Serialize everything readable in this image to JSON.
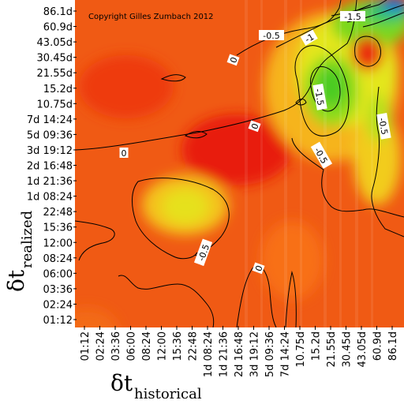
{
  "chart_data": {
    "type": "heatmap",
    "copyright": "Copyright Gilles Zumbach 2012",
    "xlabel": {
      "symbol": "δt",
      "subscript": "historical"
    },
    "ylabel": {
      "symbol": "δt",
      "subscript": "realized"
    },
    "x_ticks": [
      "01:12",
      "02:24",
      "03:36",
      "06:00",
      "08:24",
      "12:00",
      "15:36",
      "22:48",
      "1d 08:24",
      "1d 21:36",
      "2d 16:48",
      "3d 19:12",
      "5d 09:36",
      "7d 14:24",
      "10.75d",
      "15.2d",
      "21.55d",
      "30.45d",
      "43.05d",
      "60.9d",
      "86.1d"
    ],
    "y_ticks": [
      "01:12",
      "02:24",
      "03:36",
      "06:00",
      "08:24",
      "12:00",
      "15:36",
      "22:48",
      "1d 08:24",
      "1d 21:36",
      "2d 16:48",
      "3d 19:12",
      "5d 09:36",
      "7d 14:24",
      "10.75d",
      "15.2d",
      "21.55d",
      "30.45d",
      "43.05d",
      "60.9d",
      "86.1d"
    ],
    "contour_labels": [
      {
        "text": "-1.5"
      },
      {
        "text": "-0.5"
      },
      {
        "text": "-1"
      },
      {
        "text": "0"
      },
      {
        "text": "-1.5"
      },
      {
        "text": "0"
      },
      {
        "text": "-0.5"
      },
      {
        "text": "0"
      },
      {
        "text": "-0.5"
      },
      {
        "text": "-0.5"
      },
      {
        "text": "0"
      }
    ],
    "colors": {
      "low": "#0000ff",
      "mid_low": "#33cc33",
      "mid": "#ffff00",
      "high": "#ff3300"
    }
  }
}
